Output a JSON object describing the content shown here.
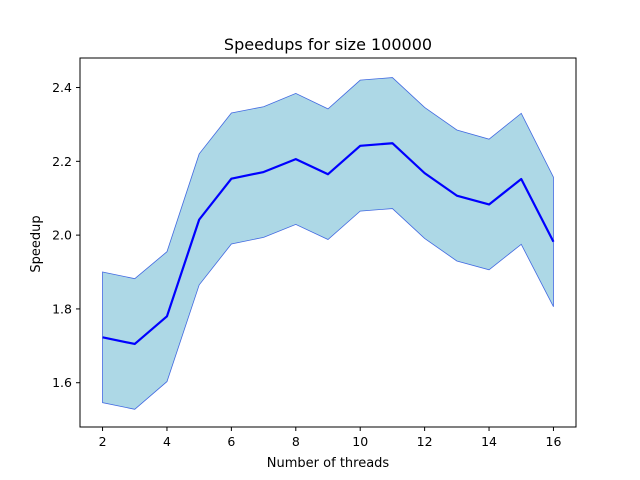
{
  "chart_data": {
    "type": "area",
    "title": "Speedups for size 100000",
    "xlabel": "Number of threads",
    "ylabel": "Speedup",
    "xlim": [
      1.3,
      16.7
    ],
    "ylim": [
      1.48,
      2.48
    ],
    "xticks": [
      2,
      4,
      6,
      8,
      10,
      12,
      14,
      16
    ],
    "yticks": [
      1.6,
      1.8,
      2.0,
      2.2,
      2.4
    ],
    "ytick_labels": [
      "1.6",
      "1.8",
      "2.0",
      "2.2",
      "2.4"
    ],
    "grid": false,
    "x": [
      2,
      3,
      4,
      5,
      6,
      7,
      8,
      9,
      10,
      11,
      12,
      13,
      14,
      15,
      16
    ],
    "mean": [
      1.723,
      1.705,
      1.78,
      2.042,
      2.153,
      2.171,
      2.206,
      2.165,
      2.242,
      2.249,
      2.168,
      2.107,
      2.083,
      2.152,
      1.982
    ],
    "upper": [
      1.9,
      1.882,
      1.955,
      2.22,
      2.331,
      2.348,
      2.384,
      2.342,
      2.42,
      2.427,
      2.346,
      2.285,
      2.26,
      2.33,
      2.157
    ],
    "lower": [
      1.546,
      1.528,
      1.603,
      1.865,
      1.976,
      1.994,
      2.029,
      1.988,
      2.065,
      2.072,
      1.991,
      1.93,
      1.906,
      1.975,
      1.806
    ],
    "colors": {
      "band_fill": "#add8e6",
      "band_edge": "#4169e1",
      "line": "#0000ff",
      "axes": "#000000"
    }
  }
}
